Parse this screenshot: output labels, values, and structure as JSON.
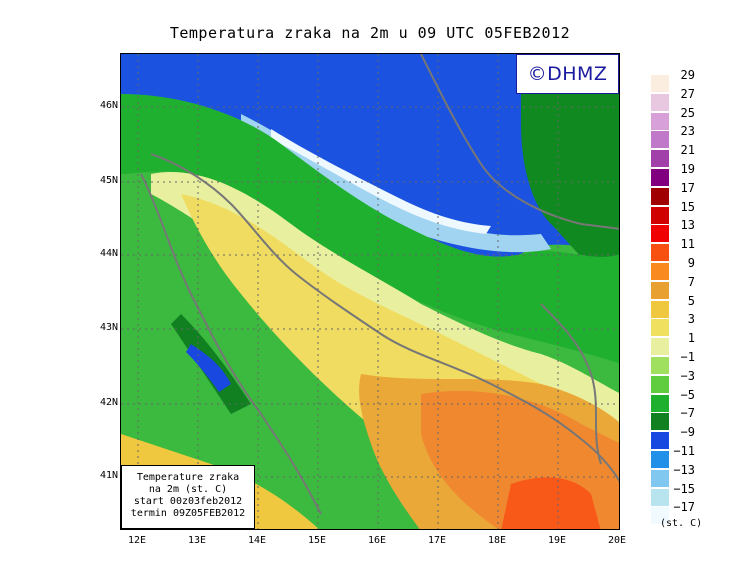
{
  "title": "Temperatura zraka na 2m u 09 UTC 05FEB2012",
  "watermark": "©DHMZ",
  "infobox": {
    "line1": "Temperature zraka",
    "line2": "na 2m (st. C)",
    "line3": "start 00z03feb2012",
    "line4": "termin 09Z05FEB2012"
  },
  "lat_labels": [
    "46N",
    "45N",
    "44N",
    "43N",
    "42N",
    "41N"
  ],
  "lon_labels": [
    "12E",
    "13E",
    "14E",
    "15E",
    "16E",
    "17E",
    "18E",
    "19E",
    "20E"
  ],
  "legend": {
    "unit": "(st. C)",
    "labels": [
      "29",
      "27",
      "25",
      "23",
      "21",
      "19",
      "17",
      "15",
      "13",
      "11",
      "9",
      "7",
      "5",
      "3",
      "1",
      "−1",
      "−3",
      "−5",
      "−7",
      "−9",
      "−11",
      "−13",
      "−15",
      "−17"
    ],
    "colors": [
      "#fbeee0",
      "#e8c8e0",
      "#d8a0d8",
      "#c078c8",
      "#a040a8",
      "#800080",
      "#a00000",
      "#d00000",
      "#f00000",
      "#f85010",
      "#f88a20",
      "#e8a030",
      "#f0c840",
      "#f0e060",
      "#e8f0a0",
      "#a0e060",
      "#60cc40",
      "#20b030",
      "#108020",
      "#1848e0",
      "#2090e8",
      "#80c8f0",
      "#b8e4f0",
      "#f0faff"
    ]
  }
}
